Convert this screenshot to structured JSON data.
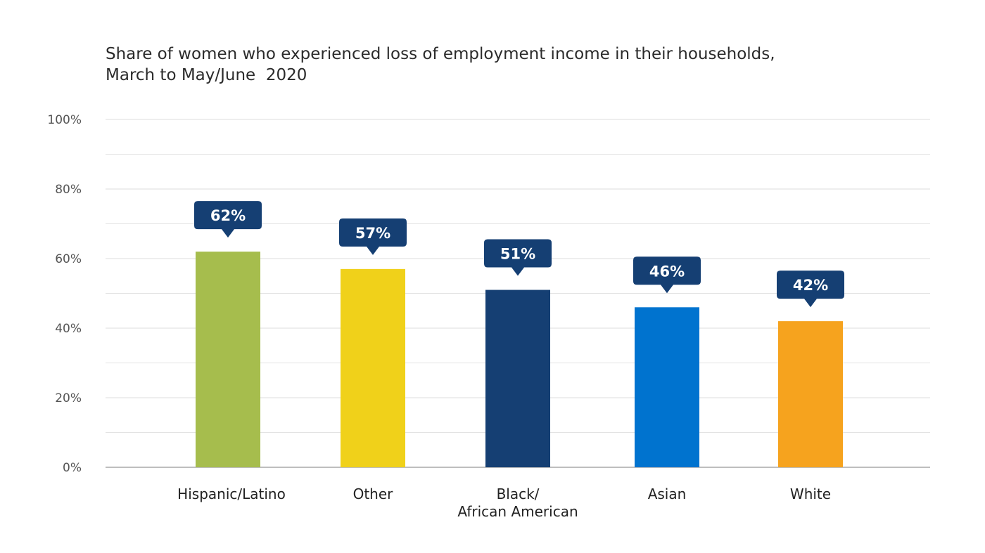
{
  "chart_data": {
    "type": "bar",
    "title": [
      "Share of women who experienced loss of employment income in their households,",
      "March to May/June  2020"
    ],
    "categories": [
      [
        "Hispanic/Latino"
      ],
      [
        "Other"
      ],
      [
        "Black/",
        "African American"
      ],
      [
        "Asian"
      ],
      [
        "White"
      ]
    ],
    "values": [
      62,
      57,
      51,
      46,
      42
    ],
    "data_labels": [
      "62%",
      "57%",
      "51%",
      "46%",
      "42%"
    ],
    "colors": [
      "#a6bd4d",
      "#f0d11a",
      "#153f73",
      "#0073cf",
      "#f6a31e"
    ],
    "label_color": "#153f73",
    "ylim": [
      0,
      100
    ],
    "yticks": [
      0,
      20,
      40,
      60,
      80,
      100
    ],
    "ytick_labels": [
      "0%",
      "20%",
      "40%",
      "60%",
      "80%",
      "100%"
    ],
    "minor_gridlines": [
      10,
      30,
      50,
      70,
      90
    ],
    "grid": true,
    "xlabel": "",
    "ylabel": ""
  }
}
